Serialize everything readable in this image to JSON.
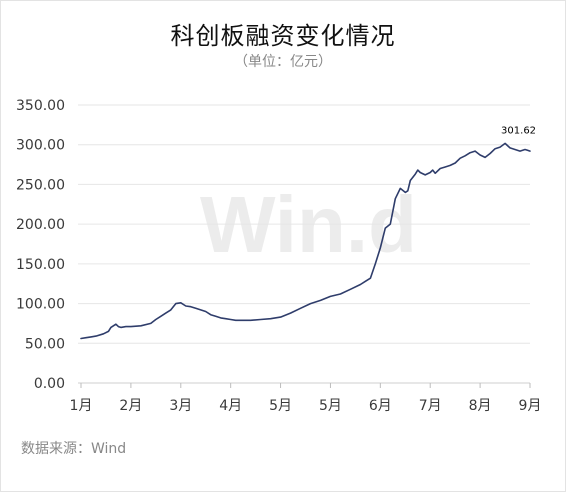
{
  "chart_data": {
    "type": "line",
    "title": "科创板融资变化情况",
    "subtitle": "（单位：亿元）",
    "source": "数据来源：Wind",
    "watermark": "Win.d",
    "ylim": [
      0,
      350
    ],
    "yticks": [
      "350.00",
      "300.00",
      "250.00",
      "200.00",
      "150.00",
      "100.00",
      "50.00",
      "0.00"
    ],
    "xticks": [
      "1月",
      "2月",
      "3月",
      "4月",
      "5月",
      "5月",
      "6月",
      "7月",
      "8月",
      "9月"
    ],
    "grid": "horizontal",
    "line_color": "#2f3d6b",
    "annotation": "301.62",
    "series": [
      {
        "name": "",
        "x": [
          0,
          0.1,
          0.2,
          0.3,
          0.45,
          0.55,
          0.6,
          0.7,
          0.75,
          0.8,
          0.9,
          1.0,
          1.2,
          1.4,
          1.5,
          1.6,
          1.7,
          1.8,
          1.9,
          2.0,
          2.1,
          2.2,
          2.3,
          2.4,
          2.5,
          2.6,
          2.7,
          2.8,
          2.9,
          3.0,
          3.1,
          3.2,
          3.4,
          3.6,
          3.8,
          4.0,
          4.2,
          4.4,
          4.6,
          4.8,
          5.0,
          5.2,
          5.4,
          5.6,
          5.7,
          5.8,
          5.9,
          6.0,
          6.1,
          6.2,
          6.3,
          6.4,
          6.5,
          6.55,
          6.6,
          6.7,
          6.75,
          6.8,
          6.9,
          7.0,
          7.05,
          7.1,
          7.2,
          7.3,
          7.4,
          7.5,
          7.6,
          7.7,
          7.8,
          7.9,
          8.0,
          8.1,
          8.2,
          8.3,
          8.4,
          8.5,
          8.6,
          8.7,
          8.8,
          8.9,
          8.95,
          9.0
        ],
        "values": [
          56,
          57,
          58,
          59,
          62,
          65,
          70,
          74,
          71,
          70,
          71,
          71,
          72,
          75,
          80,
          84,
          88,
          92,
          100,
          101,
          97,
          96,
          94,
          92,
          90,
          86,
          84,
          82,
          81,
          80,
          79,
          79,
          79,
          80,
          81,
          83,
          88,
          94,
          100,
          104,
          109,
          112,
          118,
          124,
          128,
          132,
          150,
          170,
          195,
          200,
          232,
          245,
          240,
          242,
          255,
          263,
          268,
          265,
          262,
          265,
          268,
          264,
          270,
          272,
          274,
          277,
          283,
          286,
          290,
          292,
          287,
          284,
          289,
          295,
          297,
          301.62,
          296,
          294,
          292,
          294,
          293,
          292
        ]
      }
    ]
  }
}
